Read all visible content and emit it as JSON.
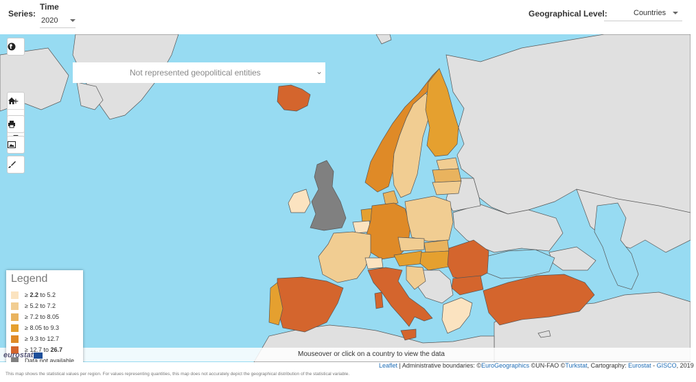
{
  "header": {
    "series_label": "Series:",
    "time_label": "Time",
    "time_value": "2020",
    "geo_label": "Geographical Level:",
    "geo_value": "Countries"
  },
  "map": {
    "not_represented_label": "Not represented geopolitical entities",
    "colors": {
      "sea": "#97dbf2",
      "outside": "#e0e0e0",
      "no_data": "#808080",
      "c1": "#fbe3c0",
      "c2": "#f1cd92",
      "c3": "#e9b35e",
      "c4": "#e5a02f",
      "c5": "#df8a27",
      "c6": "#d4652d"
    }
  },
  "toolbar": {
    "globe_icon": "globe-icon",
    "zoom_in": "+",
    "home_icon": "home-icon",
    "zoom_out": "−",
    "print_icon": "printer-icon",
    "image_icon": "image-icon",
    "brush_icon": "paintbrush-icon"
  },
  "legend": {
    "title": "Legend",
    "items": [
      {
        "label_pre": "≥ ",
        "low": "2.2",
        "mid": " to ",
        "high": "5.2",
        "color": "#fbe3c0",
        "bold_low": true,
        "bold_high": false
      },
      {
        "label_pre": "≥ ",
        "low": "5.2",
        "mid": " to ",
        "high": "7.2",
        "color": "#f1cd92",
        "bold_low": false,
        "bold_high": false
      },
      {
        "label_pre": "≥ ",
        "low": "7.2",
        "mid": " to ",
        "high": "8.05",
        "color": "#e9b35e",
        "bold_low": false,
        "bold_high": false
      },
      {
        "label_pre": "≥ ",
        "low": "8.05",
        "mid": " to ",
        "high": "9.3",
        "color": "#e5a02f",
        "bold_low": false,
        "bold_high": false
      },
      {
        "label_pre": "≥ ",
        "low": "9.3",
        "mid": " to ",
        "high": "12.7",
        "color": "#df8a27",
        "bold_low": false,
        "bold_high": false
      },
      {
        "label_pre": "≥ ",
        "low": "12.7",
        "mid": " to ",
        "high": "26.7",
        "color": "#d4652d",
        "bold_low": false,
        "bold_high": true
      }
    ],
    "na_label": "Data not available",
    "na_color": "#808080"
  },
  "footer": {
    "brand": "eurostat",
    "mouseover": "Mouseover or click on a country to view the data",
    "attribution": {
      "leaflet": "Leaflet",
      "sep1": " | Administrative boundaries: ©",
      "eurogeo": "EuroGeographics",
      "sep2": " ©",
      "unfao": "UN-FAO",
      "sep3": " ©",
      "turkstat": "Turkstat",
      "sep4": ", Cartography: ",
      "eurostat": "Eurostat",
      "sep5": " - ",
      "gisco": "GISCO",
      "sep6": ", 2019"
    },
    "disclaimer": "This map shows the statistical values per region. For values representing quantities, this map does not accurately depict the geographical distribution of the statistical variable."
  }
}
